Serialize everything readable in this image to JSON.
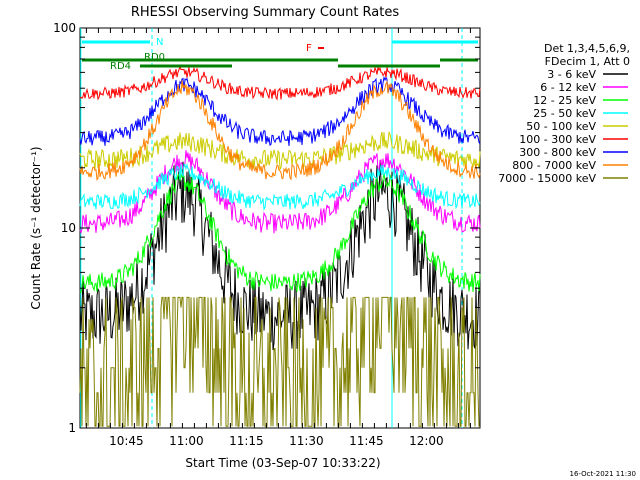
{
  "chart_data": {
    "type": "line",
    "title": "RHESSI Observing Summary Count Rates",
    "xlabel": "Start Time (03-Sep-07 10:33:22)",
    "ylabel": "Count Rate (s⁻¹ detector⁻¹)",
    "yscale": "log",
    "ylim": [
      1,
      100
    ],
    "xlim_min": [
      0,
      100
    ],
    "yticks": [
      {
        "value": 1,
        "label": "1"
      },
      {
        "value": 10,
        "label": "10"
      },
      {
        "value": 100,
        "label": "100"
      }
    ],
    "xticks": [
      {
        "value": 11.6,
        "label": "10:45"
      },
      {
        "value": 26.6,
        "label": "11:00"
      },
      {
        "value": 41.6,
        "label": "11:15"
      },
      {
        "value": 56.6,
        "label": "11:30"
      },
      {
        "value": 71.6,
        "label": "11:45"
      },
      {
        "value": 86.6,
        "label": "12:00"
      }
    ],
    "legend_position": "right",
    "legend_header": [
      "Det 1,3,4,5,6,9,",
      "FDecim 1, Att 0"
    ],
    "series": [
      {
        "name": "3 - 6 keV",
        "color": "#000000",
        "base": 3.6,
        "peak": 15,
        "noise": 0.18
      },
      {
        "name": "6 - 12 keV",
        "color": "#ff00ff",
        "base": 10.5,
        "peak": 22,
        "noise": 0.05
      },
      {
        "name": "12 - 25 keV",
        "color": "#00ff00",
        "base": 5.3,
        "peak": 17,
        "noise": 0.05
      },
      {
        "name": "25 - 50 keV",
        "color": "#00ffff",
        "base": 13.5,
        "peak": 19,
        "noise": 0.04
      },
      {
        "name": "50 - 100 keV",
        "color": "#cccc00",
        "base": 22,
        "peak": 27,
        "noise": 0.05
      },
      {
        "name": "100 - 300 keV",
        "color": "#ff0000",
        "base": 47,
        "peak": 60,
        "noise": 0.03
      },
      {
        "name": "300 - 800 keV",
        "color": "#0000ff",
        "base": 28,
        "peak": 52,
        "noise": 0.04
      },
      {
        "name": "800 - 7000 keV",
        "color": "#ff8000",
        "base": 19,
        "peak": 50,
        "noise": 0.04
      },
      {
        "name": "7000 - 15000 keV",
        "color": "#808000",
        "base": 1.5,
        "peak": 4.3,
        "noise": 0.5
      }
    ],
    "flags": [
      {
        "label": "N",
        "color": "#00ffff"
      },
      {
        "label": "F",
        "color": "#ff0000"
      },
      {
        "label": "RD0",
        "color": "#008000"
      },
      {
        "label": "RD4",
        "color": "#008000"
      }
    ],
    "footer_timestamp": "16-Oct-2021 11:30"
  }
}
